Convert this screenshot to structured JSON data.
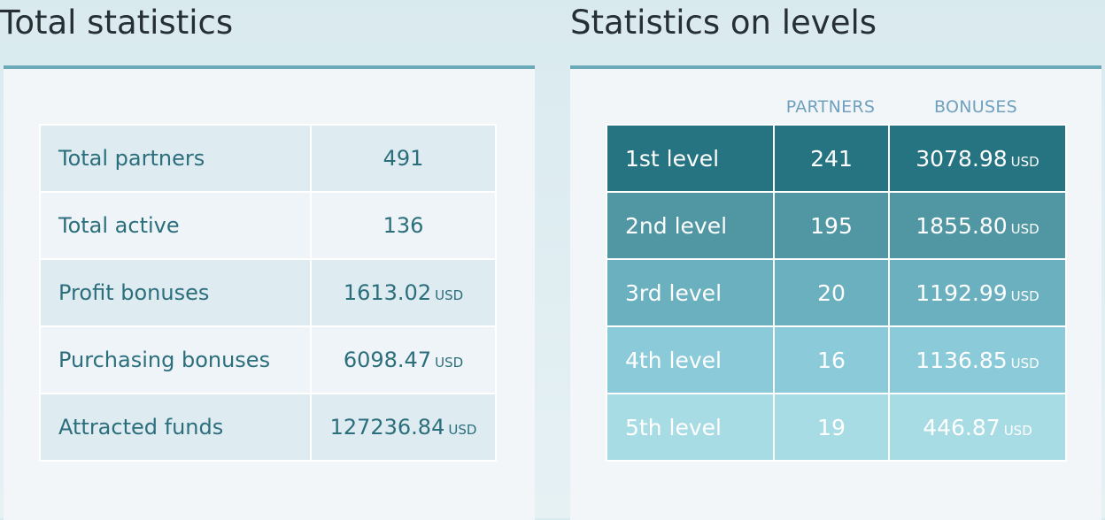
{
  "total": {
    "title": "Total statistics",
    "rows": [
      {
        "label": "Total partners",
        "value": "491",
        "unit": ""
      },
      {
        "label": "Total active",
        "value": "136",
        "unit": ""
      },
      {
        "label": "Profit bonuses",
        "value": "1613.02",
        "unit": "USD"
      },
      {
        "label": "Purchasing bonuses",
        "value": "6098.47",
        "unit": "USD"
      },
      {
        "label": "Attracted funds",
        "value": "127236.84",
        "unit": "USD"
      }
    ]
  },
  "levels": {
    "title": "Statistics on levels",
    "col_partners": "PARTNERS",
    "col_bonuses": "BONUSES",
    "rows": [
      {
        "label": "1st level",
        "partners": "241",
        "bonus": "3078.98",
        "unit": "USD",
        "color": "#267482"
      },
      {
        "label": "2nd level",
        "partners": "195",
        "bonus": "1855.80",
        "unit": "USD",
        "color": "#5196a3"
      },
      {
        "label": "3rd level",
        "partners": "20",
        "bonus": "1192.99",
        "unit": "USD",
        "color": "#6ab0bf"
      },
      {
        "label": "4th level",
        "partners": "16",
        "bonus": "1136.85",
        "unit": "USD",
        "color": "#8bcbd9"
      },
      {
        "label": "5th level",
        "partners": "19",
        "bonus": "446.87",
        "unit": "USD",
        "color": "#a8dce5"
      }
    ]
  }
}
